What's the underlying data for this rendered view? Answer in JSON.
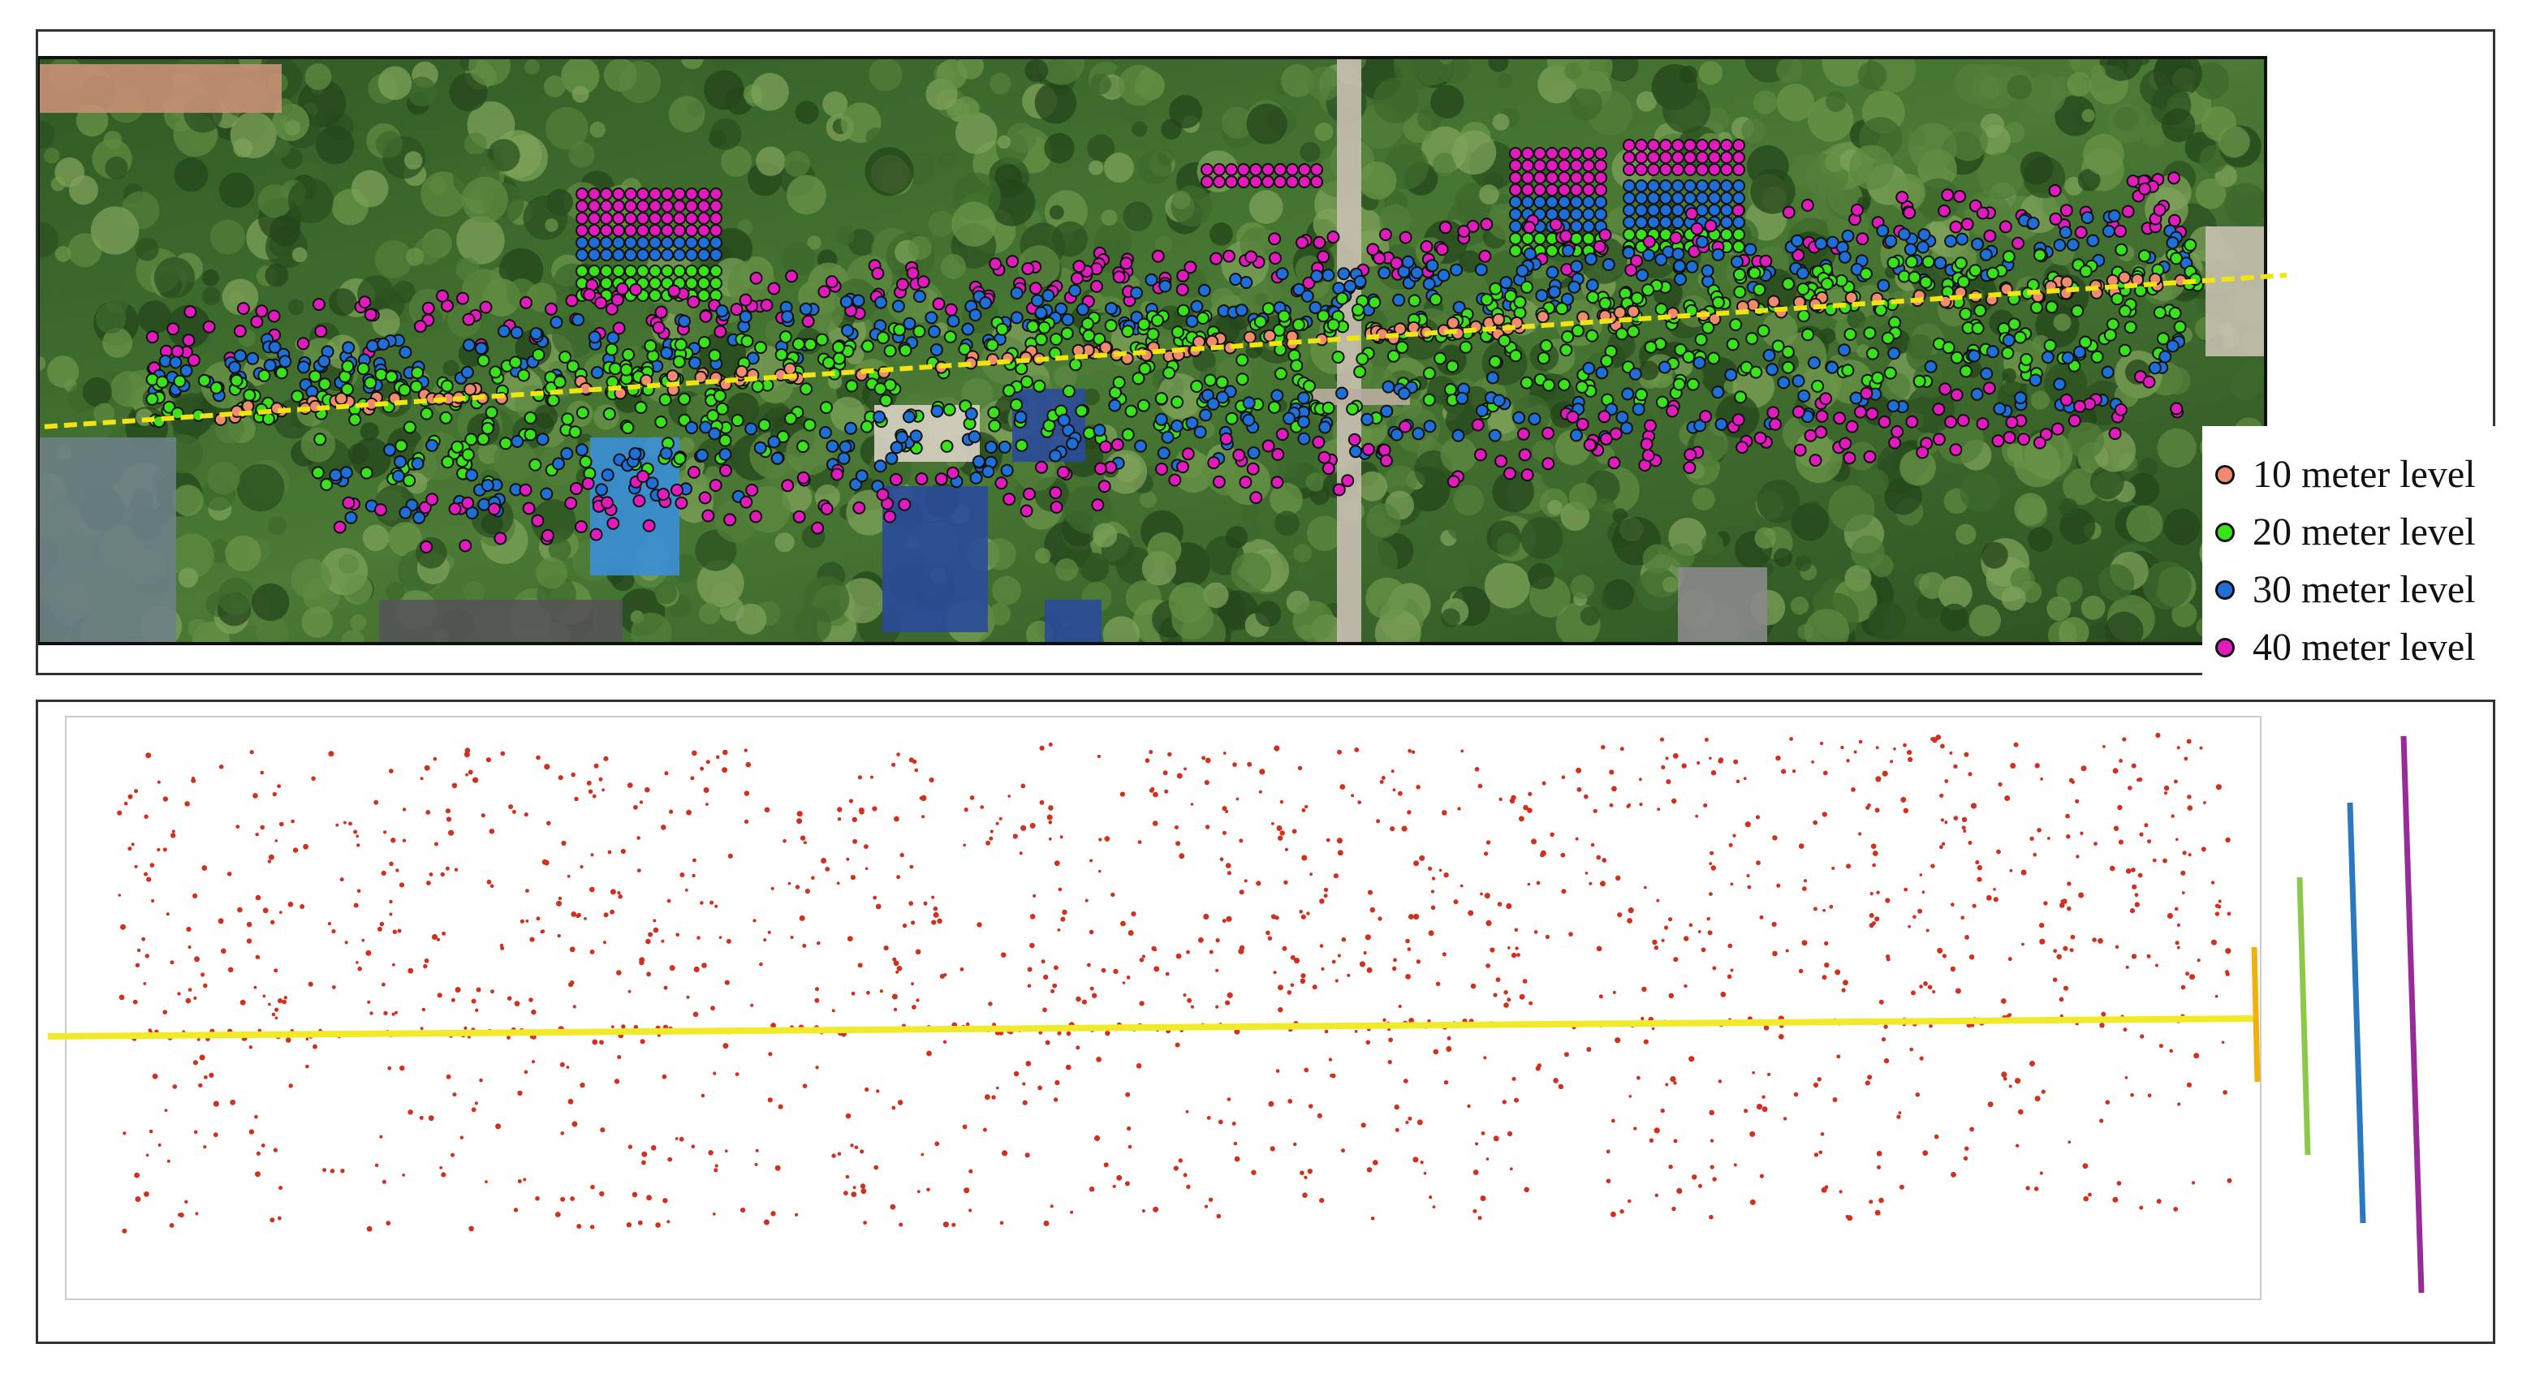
{
  "legend": {
    "items": [
      {
        "label": "10 meter level",
        "color": "#f08a70"
      },
      {
        "label": "20 meter level",
        "color": "#39e21b"
      },
      {
        "label": "30 meter level",
        "color": "#1f6fd8"
      },
      {
        "label": "40 meter level",
        "color": "#e21bbd"
      }
    ]
  },
  "colors": {
    "panel_border": "#333333",
    "aerial_vegetation": "#3f6e2f",
    "baseline_dashed": "#f2e312",
    "baseline_solid": "#f0ea2a",
    "point_cloud": "#d2301e",
    "bar_10m": "#f2b010",
    "bar_20m": "#8cc84a",
    "bar_30m": "#2a78c0",
    "bar_40m": "#9a2a9a"
  },
  "icons": {
    "aerial_image": "aerial-photo-orthomosaic",
    "point_cloud": "red-point-cloud",
    "height_bars": "colored-height-bars"
  }
}
